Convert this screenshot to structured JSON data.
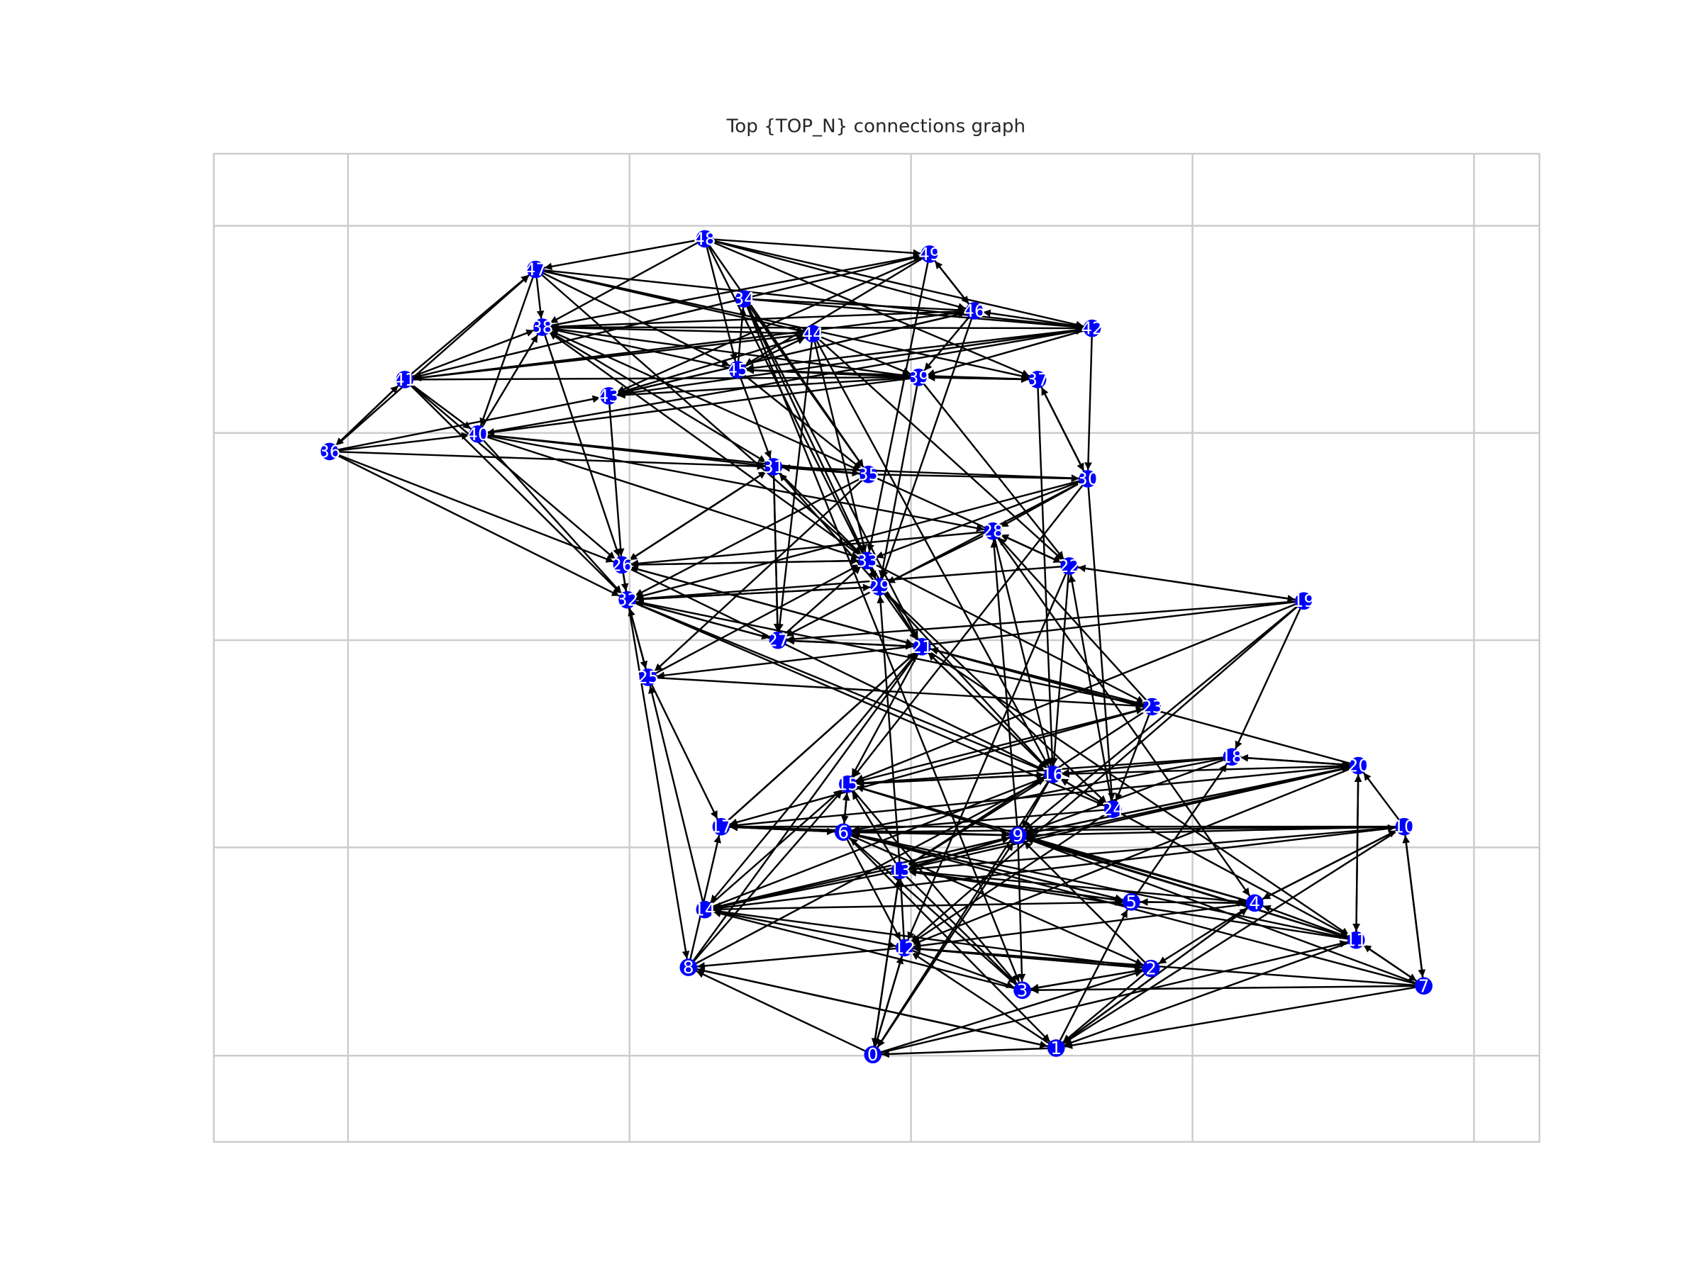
{
  "title": "Top {TOP_N} connections graph",
  "nodes": [
    "0",
    "1",
    "2",
    "3",
    "4",
    "5",
    "6",
    "7",
    "8",
    "9",
    "10",
    "11",
    "12",
    "13",
    "14",
    "15",
    "16",
    "17",
    "18",
    "19",
    "20",
    "21",
    "22",
    "23",
    "24",
    "25",
    "26",
    "27",
    "28",
    "29",
    "30",
    "31",
    "32",
    "33",
    "34",
    "35",
    "36",
    "37",
    "38",
    "39",
    "40",
    "41",
    "42",
    "43",
    "44",
    "45",
    "46",
    "47",
    "48",
    "49"
  ]
}
